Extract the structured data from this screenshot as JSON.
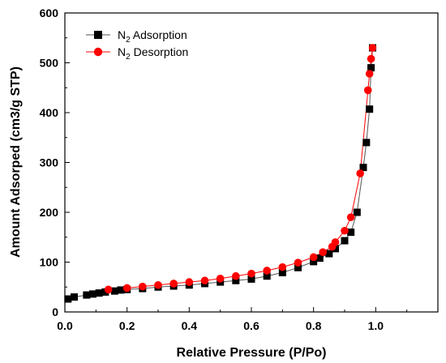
{
  "chart_data": {
    "type": "scatter",
    "title": "",
    "xlabel": "Relative Pressure (P/Po)",
    "ylabel": "Amount Adsorped (cm3/g STP)",
    "xlim": [
      0.0,
      1.2
    ],
    "ylim": [
      0,
      600
    ],
    "xticks": [
      0.0,
      0.2,
      0.4,
      0.6,
      0.8,
      1.0
    ],
    "yticks": [
      0,
      100,
      200,
      300,
      400,
      500,
      600
    ],
    "grid": false,
    "legend_position": "top-left",
    "series": [
      {
        "name": "N",
        "name_sub": "2",
        "name_rest": " Adsorption",
        "color": "#000000",
        "line_color": "#555555",
        "marker": "square",
        "x": [
          0.01,
          0.03,
          0.07,
          0.09,
          0.11,
          0.13,
          0.16,
          0.18,
          0.2,
          0.25,
          0.3,
          0.35,
          0.4,
          0.45,
          0.5,
          0.55,
          0.6,
          0.65,
          0.7,
          0.75,
          0.8,
          0.82,
          0.85,
          0.87,
          0.9,
          0.92,
          0.94,
          0.96,
          0.97,
          0.98,
          0.985,
          0.99
        ],
        "y": [
          26,
          30,
          34,
          36,
          38,
          40,
          42,
          44,
          45,
          47,
          50,
          52,
          54,
          57,
          60,
          63,
          66,
          72,
          79,
          89,
          101,
          108,
          117,
          127,
          143,
          160,
          200,
          290,
          340,
          407,
          490,
          530
        ]
      },
      {
        "name": "N",
        "name_sub": "2",
        "name_rest": " Desorption",
        "color": "#ff0000",
        "line_color": "#ff0000",
        "marker": "circle",
        "x": [
          0.14,
          0.2,
          0.25,
          0.3,
          0.35,
          0.4,
          0.45,
          0.5,
          0.55,
          0.6,
          0.65,
          0.7,
          0.75,
          0.8,
          0.83,
          0.86,
          0.87,
          0.9,
          0.92,
          0.95,
          0.975,
          0.98,
          0.985,
          0.99
        ],
        "y": [
          45,
          48,
          51,
          54,
          57,
          60,
          63,
          67,
          72,
          77,
          83,
          90,
          99,
          110,
          120,
          131,
          140,
          163,
          190,
          278,
          445,
          478,
          508,
          530
        ]
      }
    ]
  }
}
